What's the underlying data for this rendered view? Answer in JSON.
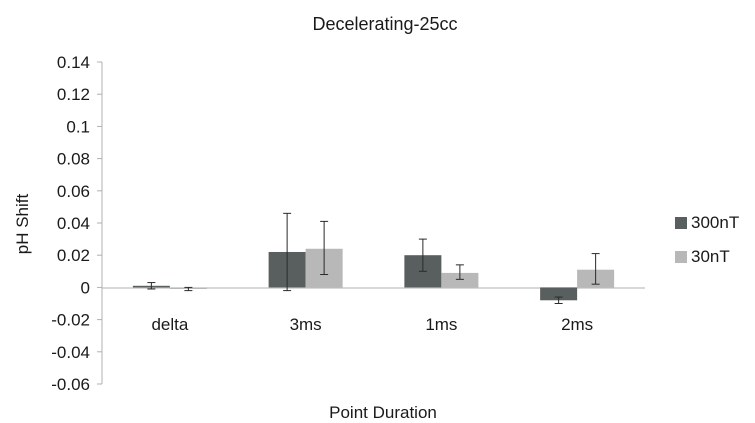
{
  "chart_data": {
    "type": "bar",
    "title": "Decelerating-25cc",
    "xlabel": "Point Duration",
    "ylabel": "pH Shift",
    "ylim": [
      -0.06,
      0.14
    ],
    "yticks": [
      "0.14",
      "0.12",
      "0.1",
      "0.08",
      "0.06",
      "0.04",
      "0.02",
      "0",
      "-0.02",
      "-0.04",
      "-0.06"
    ],
    "categories": [
      "delta",
      "3ms",
      "1ms",
      "2ms"
    ],
    "series": [
      {
        "name": "300nT",
        "color": "#595f5f",
        "values": [
          0.001,
          0.022,
          0.02,
          -0.008
        ],
        "err_low": [
          -0.001,
          -0.002,
          0.01,
          -0.01
        ],
        "err_high": [
          0.003,
          0.046,
          0.03,
          -0.006
        ]
      },
      {
        "name": "30nT",
        "color": "#b8b8b8",
        "values": [
          -0.001,
          0.024,
          0.009,
          0.011
        ],
        "err_low": [
          -0.002,
          0.008,
          0.005,
          0.002
        ],
        "err_high": [
          0.0,
          0.041,
          0.014,
          0.021
        ]
      }
    ],
    "grid": false,
    "legend_position": "right"
  }
}
